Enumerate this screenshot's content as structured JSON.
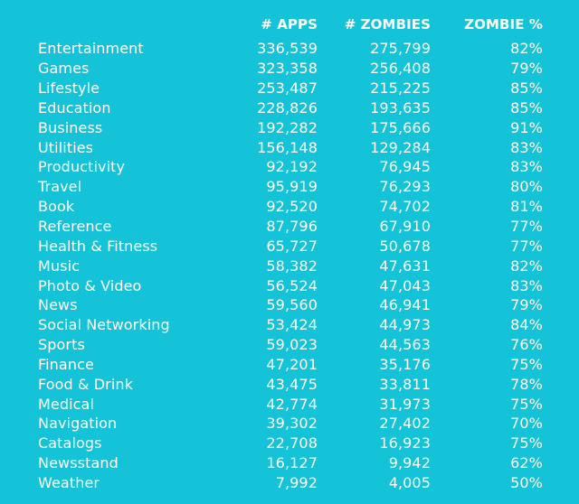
{
  "background_color": "#14c3d7",
  "text_color": "#ffffff",
  "table": {
    "headers": {
      "category": "",
      "apps": "# APPS",
      "zombies": "# ZOMBIES",
      "zombie_pct": "ZOMBIE %"
    },
    "rows": [
      {
        "category": "Entertainment",
        "apps": "336,539",
        "zombies": "275,799",
        "zombie_pct": "82%"
      },
      {
        "category": "Games",
        "apps": "323,358",
        "zombies": "256,408",
        "zombie_pct": "79%"
      },
      {
        "category": "Lifestyle",
        "apps": "253,487",
        "zombies": "215,225",
        "zombie_pct": "85%"
      },
      {
        "category": "Education",
        "apps": "228,826",
        "zombies": "193,635",
        "zombie_pct": "85%"
      },
      {
        "category": "Business",
        "apps": "192,282",
        "zombies": "175,666",
        "zombie_pct": "91%"
      },
      {
        "category": "Utilities",
        "apps": "156,148",
        "zombies": "129,284",
        "zombie_pct": "83%"
      },
      {
        "category": "Productivity",
        "apps": "92,192",
        "zombies": "76,945",
        "zombie_pct": "83%"
      },
      {
        "category": "Travel",
        "apps": "95,919",
        "zombies": "76,293",
        "zombie_pct": "80%"
      },
      {
        "category": "Book",
        "apps": "92,520",
        "zombies": "74,702",
        "zombie_pct": "81%"
      },
      {
        "category": "Reference",
        "apps": "87,796",
        "zombies": "67,910",
        "zombie_pct": "77%"
      },
      {
        "category": "Health & Fitness",
        "apps": "65,727",
        "zombies": "50,678",
        "zombie_pct": "77%"
      },
      {
        "category": "Music",
        "apps": "58,382",
        "zombies": "47,631",
        "zombie_pct": "82%"
      },
      {
        "category": "Photo & Video",
        "apps": "56,524",
        "zombies": "47,043",
        "zombie_pct": "83%"
      },
      {
        "category": "News",
        "apps": "59,560",
        "zombies": "46,941",
        "zombie_pct": "79%"
      },
      {
        "category": "Social Networking",
        "apps": "53,424",
        "zombies": "44,973",
        "zombie_pct": "84%"
      },
      {
        "category": "Sports",
        "apps": "59,023",
        "zombies": "44,563",
        "zombie_pct": "76%"
      },
      {
        "category": "Finance",
        "apps": "47,201",
        "zombies": "35,176",
        "zombie_pct": "75%"
      },
      {
        "category": "Food & Drink",
        "apps": "43,475",
        "zombies": "33,811",
        "zombie_pct": "78%"
      },
      {
        "category": "Medical",
        "apps": "42,774",
        "zombies": "31,973",
        "zombie_pct": "75%"
      },
      {
        "category": "Navigation",
        "apps": "39,302",
        "zombies": "27,402",
        "zombie_pct": "70%"
      },
      {
        "category": "Catalogs",
        "apps": "22,708",
        "zombies": "16,923",
        "zombie_pct": "75%"
      },
      {
        "category": "Newsstand",
        "apps": "16,127",
        "zombies": "9,942",
        "zombie_pct": "62%"
      },
      {
        "category": "Weather",
        "apps": "7,992",
        "zombies": "4,005",
        "zombie_pct": "50%"
      }
    ]
  }
}
